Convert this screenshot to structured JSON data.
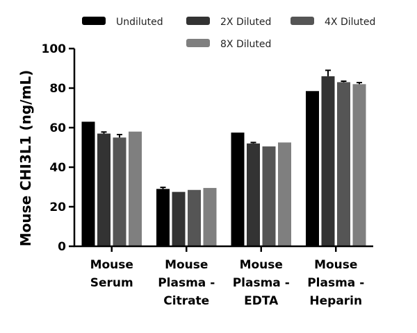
{
  "chart_data": {
    "type": "bar",
    "title": "",
    "xlabel": "",
    "ylabel": "Mouse CHI3L1 (ng/mL)",
    "ylim": [
      0,
      100
    ],
    "yticks": [
      0,
      20,
      40,
      60,
      80,
      100
    ],
    "categories": [
      [
        "Mouse",
        "Serum"
      ],
      [
        "Mouse",
        "Plasma -",
        "Citrate"
      ],
      [
        "Mouse",
        "Plasma -",
        "EDTA"
      ],
      [
        "Mouse",
        "Plasma -",
        "Heparin"
      ]
    ],
    "series": [
      {
        "name": "Undiluted",
        "color": "#000000",
        "values": [
          63,
          29,
          57.5,
          78.5
        ],
        "errors": [
          0,
          0.8,
          0,
          0
        ]
      },
      {
        "name": "2X Diluted",
        "color": "#333333",
        "values": [
          57,
          27.5,
          52,
          86
        ],
        "errors": [
          0.8,
          0,
          0.5,
          3
        ]
      },
      {
        "name": "4X Diluted",
        "color": "#555555",
        "values": [
          55,
          28.5,
          50.5,
          83
        ],
        "errors": [
          1.5,
          0,
          0,
          0.5
        ]
      },
      {
        "name": "8X Diluted",
        "color": "#7f7f7f",
        "values": [
          58,
          29.5,
          52.5,
          82
        ],
        "errors": [
          0,
          0,
          0,
          0.8
        ]
      }
    ],
    "legend_position": "top"
  }
}
